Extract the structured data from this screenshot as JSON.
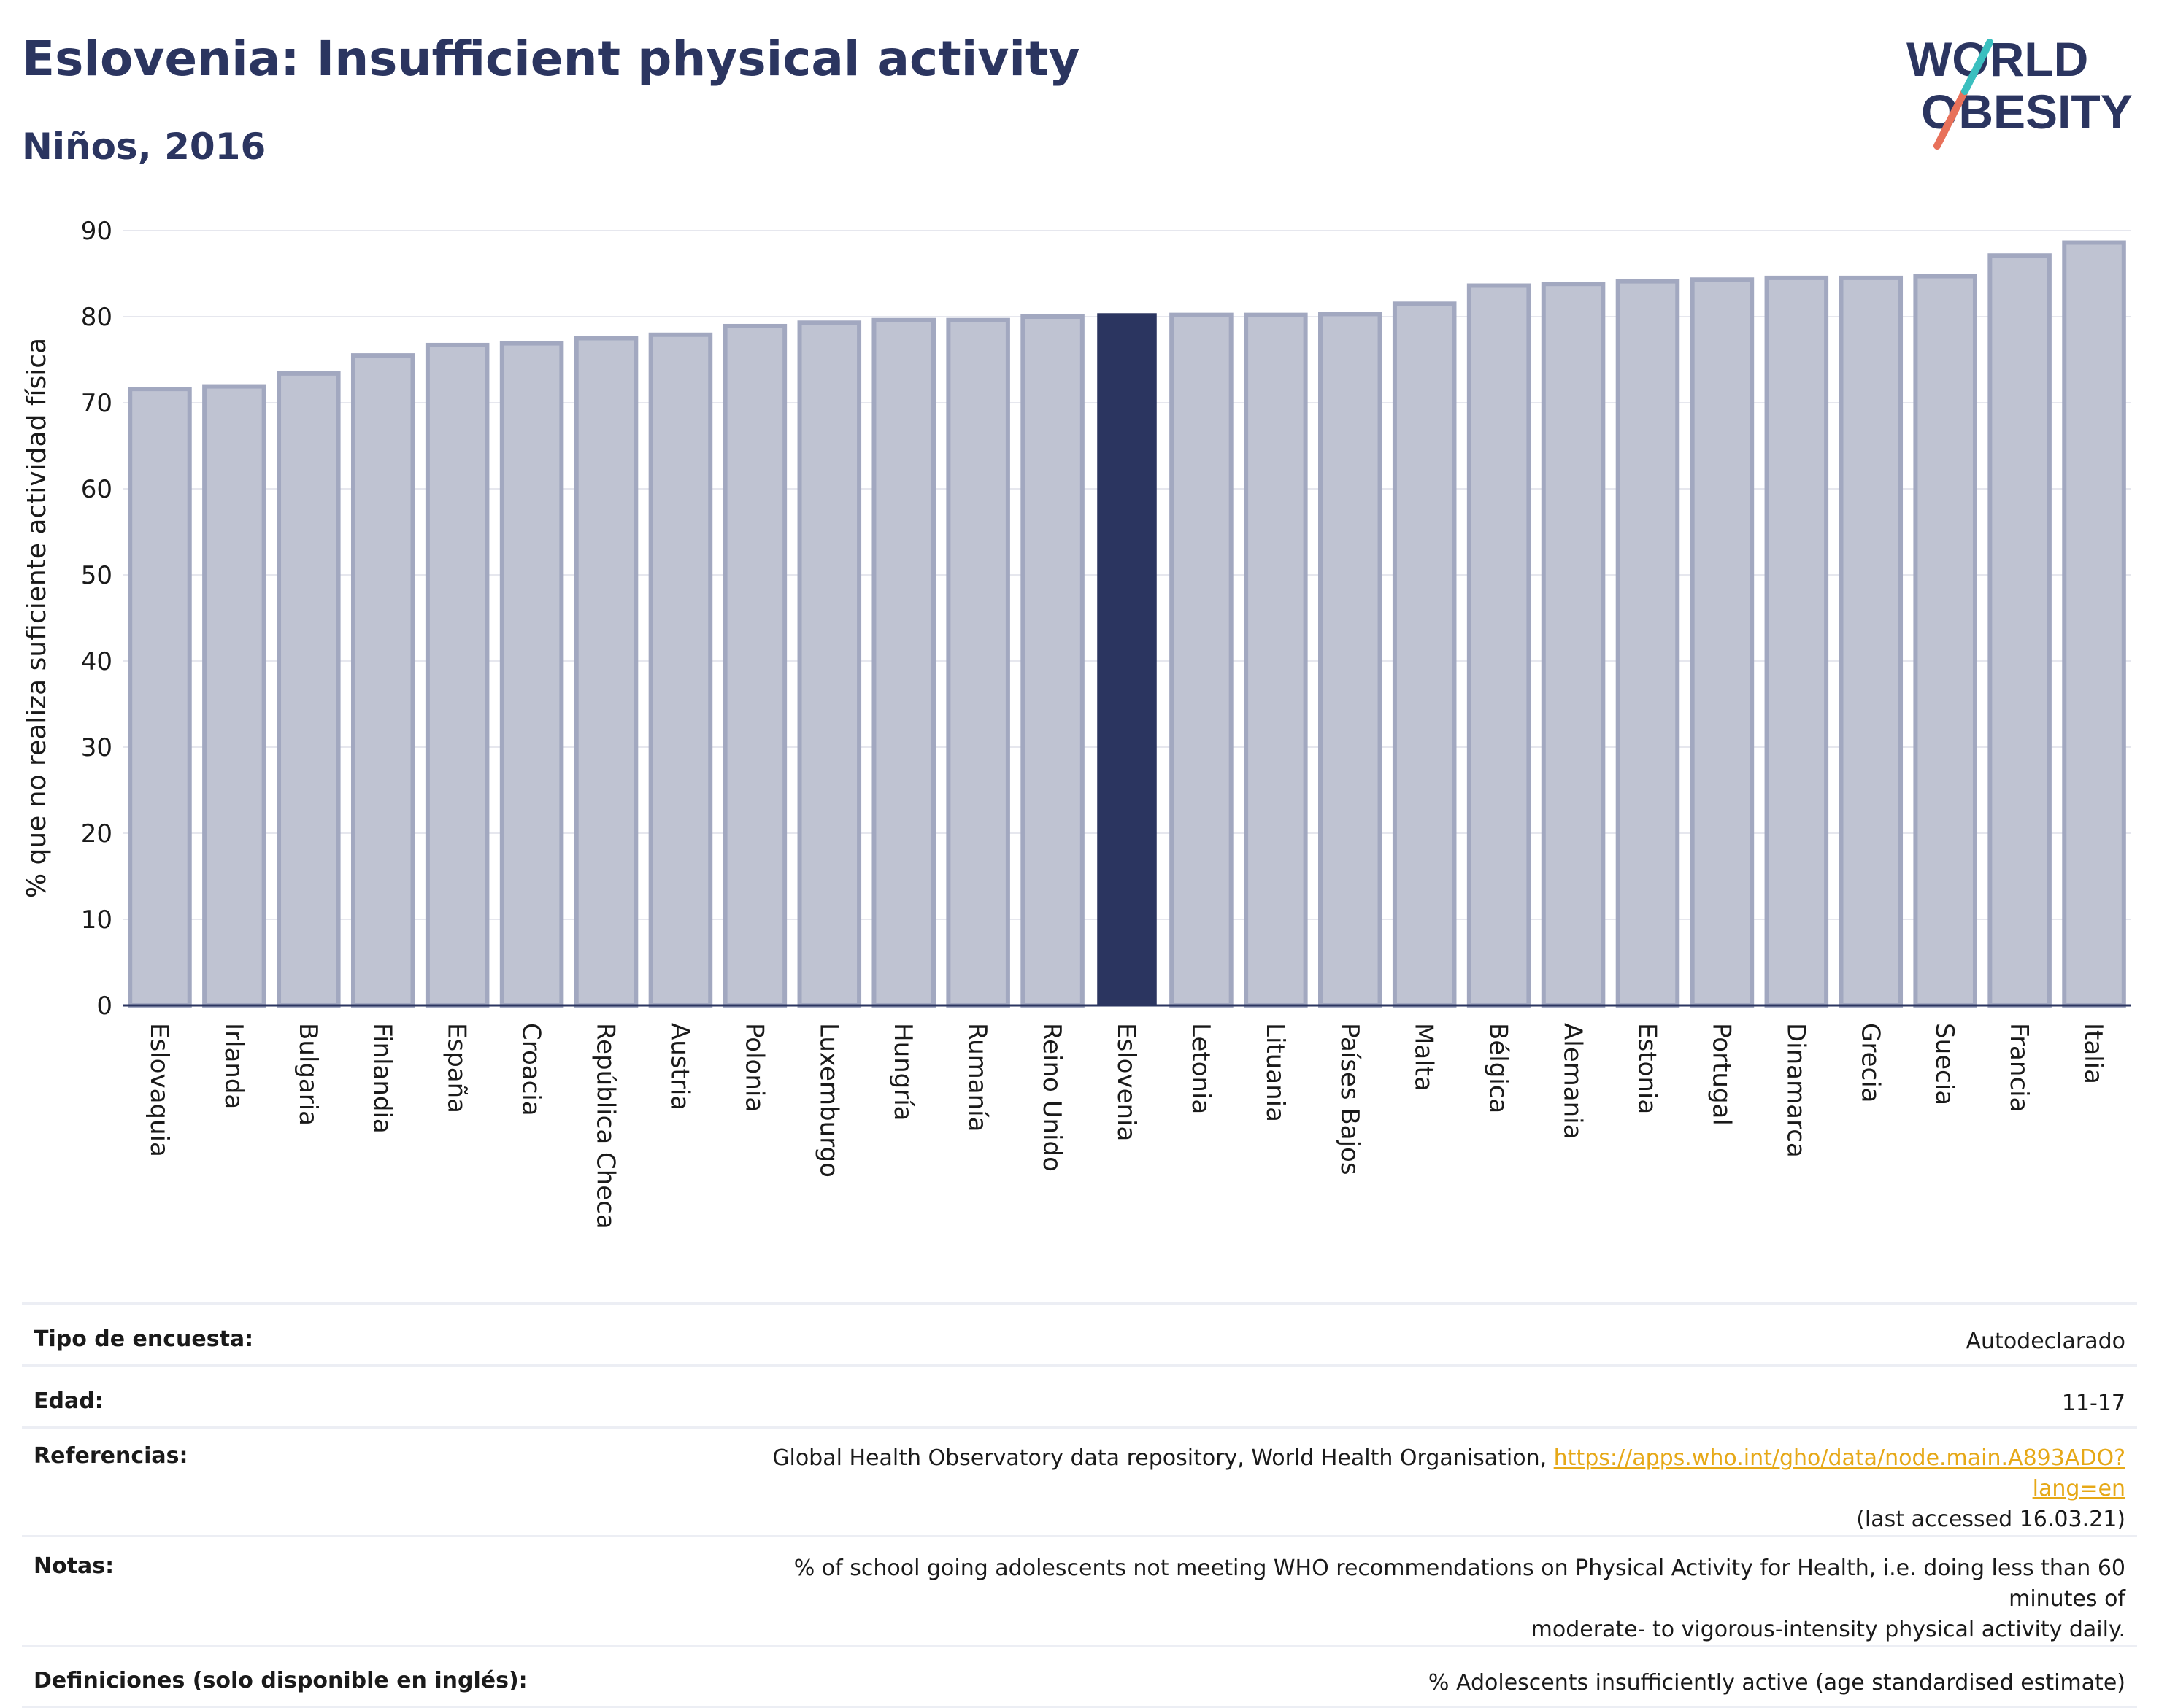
{
  "header": {
    "title": "Eslovenia: Insufficient physical activity",
    "subtitle": "Niños, 2016",
    "logo_line1": "WORLD",
    "logo_line2": "OBESITY"
  },
  "chart_data": {
    "type": "bar",
    "ylabel": "% que no realiza suficiente actividad física",
    "ylim": [
      0,
      90
    ],
    "yticks": [
      0,
      10,
      20,
      30,
      40,
      50,
      60,
      70,
      80,
      90
    ],
    "grid": true,
    "categories": [
      "Eslovaquia",
      "Irlanda",
      "Bulgaria",
      "Finlandia",
      "España",
      "Croacia",
      "República Checa",
      "Austria",
      "Polonia",
      "Luxemburgo",
      "Hungría",
      "Rumanía",
      "Reino Unido",
      "Eslovenia",
      "Letonia",
      "Lituania",
      "Países Bajos",
      "Malta",
      "Bélgica",
      "Alemania",
      "Estonia",
      "Portugal",
      "Dinamarca",
      "Grecia",
      "Suecia",
      "Francia",
      "Italia"
    ],
    "values": [
      71.6,
      71.9,
      73.4,
      75.5,
      76.7,
      76.9,
      77.5,
      77.9,
      78.9,
      79.3,
      79.6,
      79.6,
      80.0,
      80.4,
      80.2,
      80.2,
      80.3,
      81.5,
      83.6,
      83.8,
      84.1,
      84.3,
      84.5,
      84.5,
      84.7,
      87.1,
      88.6
    ],
    "highlight": "Eslovenia",
    "colors": {
      "bar": "#bfc3d2",
      "bar_edge": "#a2a8c0",
      "highlight": "#2b3560",
      "grid": "#e6e7ee",
      "axis": "#2b3560"
    }
  },
  "info_table": {
    "rows": [
      {
        "label": "Tipo de encuesta:",
        "value": "Autodeclarado"
      },
      {
        "label": "Edad:",
        "value": "11-17"
      },
      {
        "label": "Referencias:",
        "value": "Global Health Observatory data repository, World Health Organisation, ",
        "link": "https://apps.who.int/gho/data/node.main.A893ADO?lang=en",
        "value_tail": "(last accessed 16.03.21)"
      },
      {
        "label": "Notas:",
        "value": "% of school going adolescents not meeting WHO recommendations on Physical Activity for Health, i.e. doing less than 60 minutes of",
        "value_tail": "moderate- to vigorous-intensity physical activity daily."
      },
      {
        "label": "Definiciones (solo disponible en inglés):",
        "value": "% Adolescents insufficiently active (age standardised estimate)"
      }
    ]
  }
}
